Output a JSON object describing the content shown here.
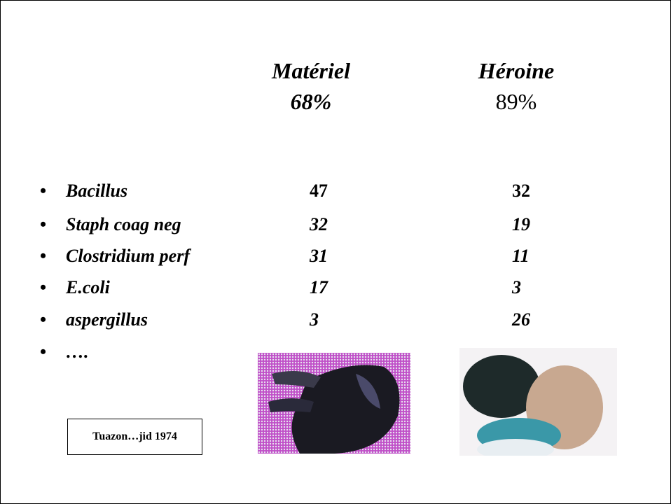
{
  "header": {
    "columns": [
      {
        "title": "Matériel",
        "value": "68%"
      },
      {
        "title": "Héroine",
        "value": "89%"
      }
    ]
  },
  "table": {
    "rows": [
      {
        "label": "Bacillus",
        "values": [
          47,
          32
        ]
      },
      {
        "label": "Staph coag neg",
        "values": [
          32,
          19
        ]
      },
      {
        "label": "Clostridium perf",
        "values": [
          31,
          11
        ]
      },
      {
        "label": "E.coli",
        "values": [
          17,
          3
        ]
      },
      {
        "label": "aspergillus",
        "values": [
          3,
          26
        ]
      },
      {
        "label": "….",
        "values": []
      }
    ]
  },
  "citation": "Tuazon…jid 1974"
}
